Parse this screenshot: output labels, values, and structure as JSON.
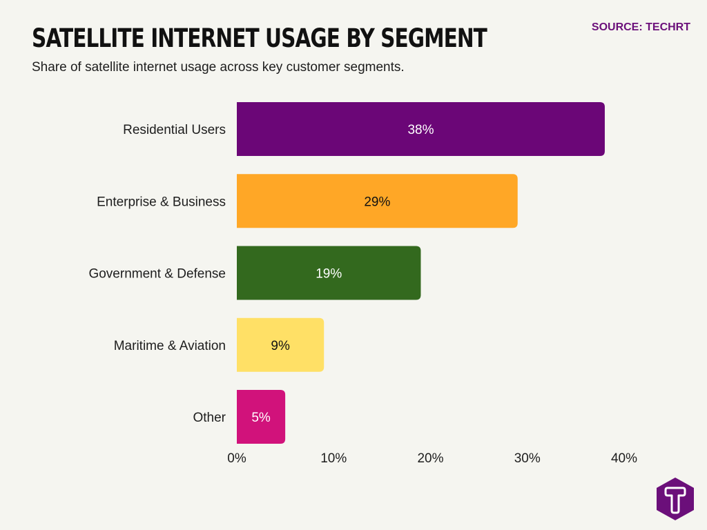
{
  "title": "Satellite Internet Usage by Segment",
  "subtitle": "Share of satellite internet usage across key customer segments.",
  "source": "SOURCE: TECHRT",
  "colors": {
    "accent": "#6b0f7a",
    "background": "#f5f5f0"
  },
  "logo": {
    "icon": "techrt-logo-icon",
    "color": "#6b0f7a"
  },
  "chart_data": {
    "type": "bar",
    "orientation": "horizontal",
    "categories": [
      "Residential Users",
      "Enterprise & Business",
      "Government & Defense",
      "Maritime & Aviation",
      "Other"
    ],
    "values": [
      38,
      29,
      19,
      9,
      5
    ],
    "data_labels": [
      "38%",
      "29%",
      "19%",
      "9%",
      "5%"
    ],
    "bar_colors": [
      "#6b0677",
      "#ffa726",
      "#33691e",
      "#ffe066",
      "#d1127b"
    ],
    "label_colors": [
      "#ffffff",
      "#111111",
      "#ffffff",
      "#111111",
      "#ffffff"
    ],
    "xlim": [
      0,
      40
    ],
    "xticks": [
      "0%",
      "10%",
      "20%",
      "30%",
      "40%"
    ],
    "xlabel": "",
    "ylabel": "",
    "grid": false,
    "legend": "none"
  }
}
